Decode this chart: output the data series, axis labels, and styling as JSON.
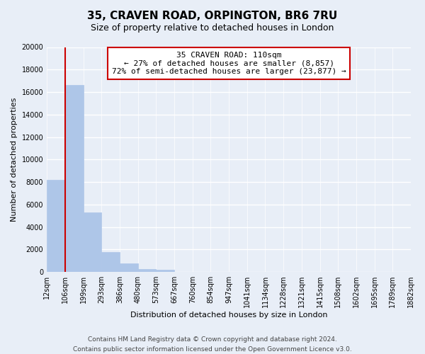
{
  "title": "35, CRAVEN ROAD, ORPINGTON, BR6 7RU",
  "subtitle": "Size of property relative to detached houses in London",
  "bar_heights": [
    8200,
    16600,
    5300,
    1800,
    750,
    250,
    200,
    0,
    0,
    0,
    0,
    0,
    0,
    0,
    0,
    0,
    0,
    0,
    0,
    0
  ],
  "bin_labels": [
    "12sqm",
    "106sqm",
    "199sqm",
    "293sqm",
    "386sqm",
    "480sqm",
    "573sqm",
    "667sqm",
    "760sqm",
    "854sqm",
    "947sqm",
    "1041sqm",
    "1134sqm",
    "1228sqm",
    "1321sqm",
    "1415sqm",
    "1508sqm",
    "1602sqm",
    "1695sqm",
    "1789sqm",
    "1882sqm"
  ],
  "bar_color": "#aec6e8",
  "bar_edge_color": "#aec6e8",
  "property_line_color": "#cc0000",
  "ylabel": "Number of detached properties",
  "xlabel": "Distribution of detached houses by size in London",
  "ylim": [
    0,
    20000
  ],
  "yticks": [
    0,
    2000,
    4000,
    6000,
    8000,
    10000,
    12000,
    14000,
    16000,
    18000,
    20000
  ],
  "annotation_title": "35 CRAVEN ROAD: 110sqm",
  "annotation_line1": "← 27% of detached houses are smaller (8,857)",
  "annotation_line2": "72% of semi-detached houses are larger (23,877) →",
  "annotation_box_color": "#ffffff",
  "annotation_box_edge": "#cc0000",
  "footer_line1": "Contains HM Land Registry data © Crown copyright and database right 2024.",
  "footer_line2": "Contains public sector information licensed under the Open Government Licence v3.0.",
  "background_color": "#e8eef7",
  "grid_color": "#ffffff",
  "title_fontsize": 11,
  "subtitle_fontsize": 9,
  "axis_label_fontsize": 8,
  "tick_fontsize": 7,
  "annotation_fontsize": 8,
  "footer_fontsize": 6.5
}
